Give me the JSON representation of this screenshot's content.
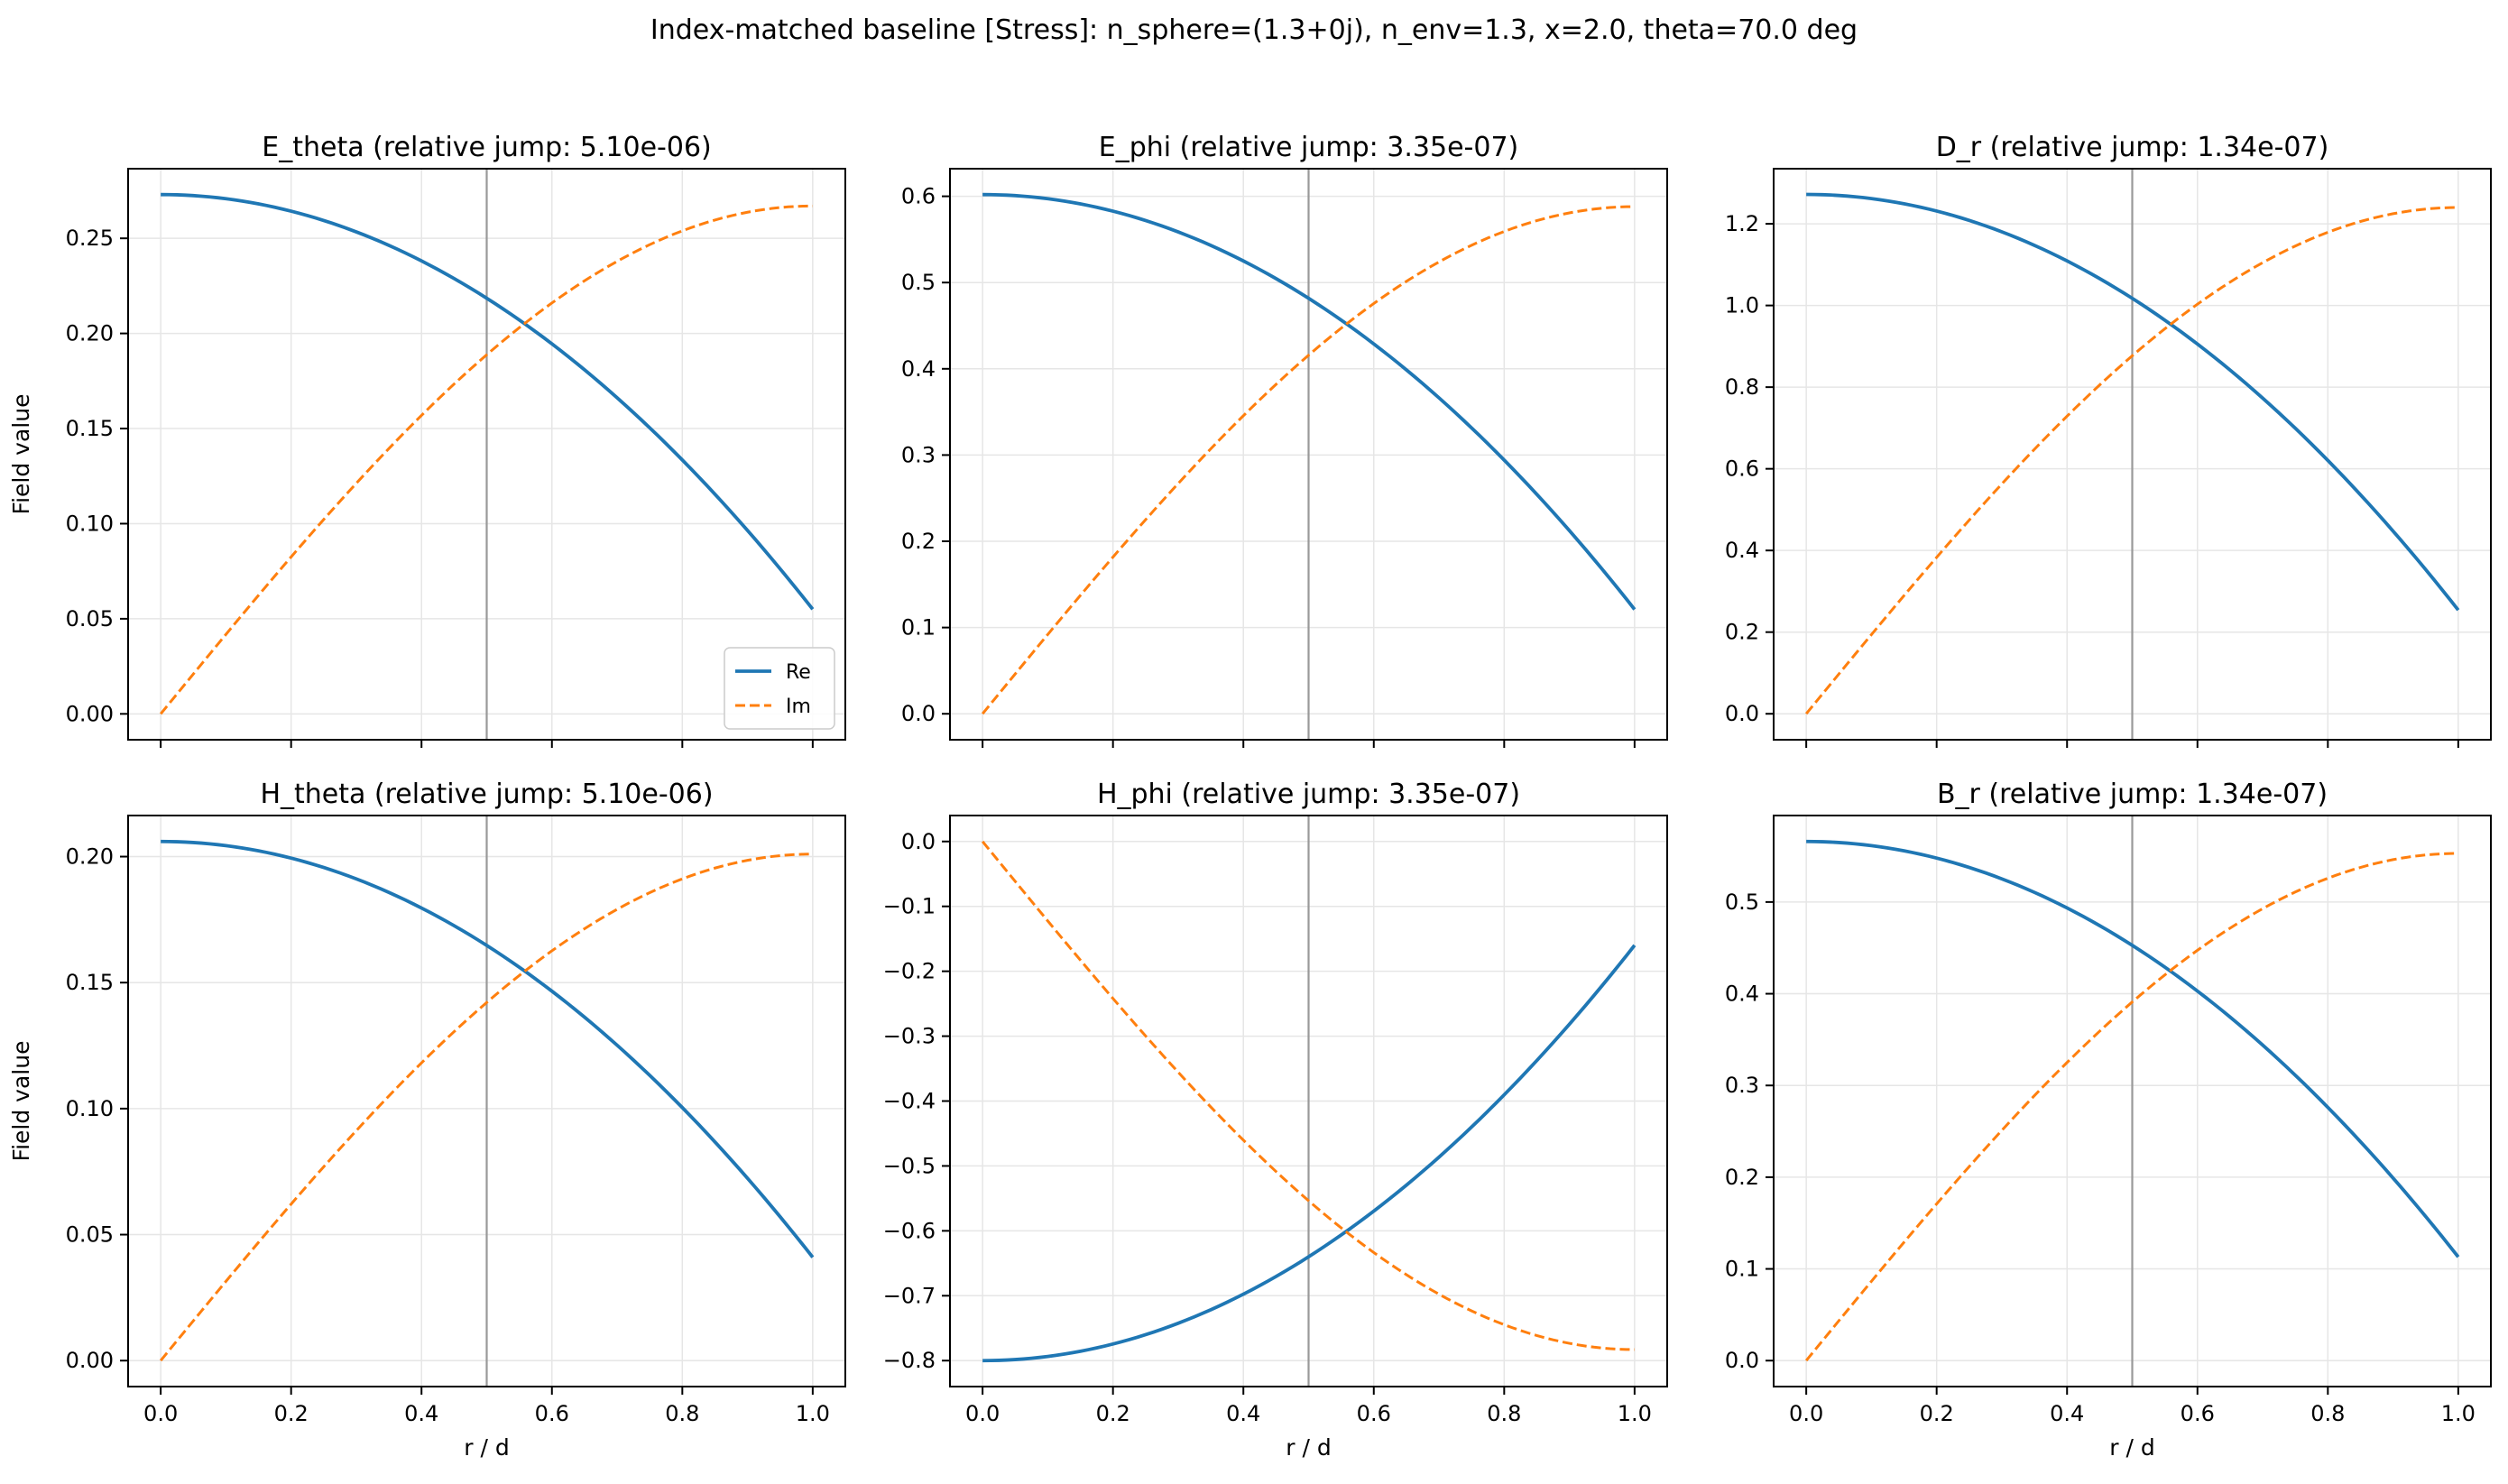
{
  "figure": {
    "suptitle": "Index-matched baseline [Stress]: n_sphere=(1.3+0j), n_env=1.3, x=2.0, theta=70.0 deg"
  },
  "colors": {
    "re": "#1f77b4",
    "im": "#ff7f0e",
    "grid": "#e6e6e6",
    "interface_line": "#999999",
    "axes": "#000000"
  },
  "legend": {
    "re_label": "Re",
    "im_label": "Im",
    "location": "lower right"
  },
  "chart_data": [
    {
      "type": "line",
      "title": "E_theta (relative jump: 5.10e-06)",
      "xlabel": "",
      "ylabel": "Field value",
      "xlim": [
        -0.05,
        1.05
      ],
      "ylim": [
        -0.0136,
        0.2866
      ],
      "xticks": [
        0.0,
        0.2,
        0.4,
        0.6,
        0.8,
        1.0
      ],
      "xtick_labels": [],
      "yticks": [
        0.0,
        0.05,
        0.1,
        0.15,
        0.2,
        0.25
      ],
      "ytick_labels": [
        "0.00",
        "0.05",
        "0.10",
        "0.15",
        "0.20",
        "0.25"
      ],
      "interface_x": 0.5,
      "grid": true,
      "legend": true,
      "re_amp": 0.273,
      "re_end": 0.055,
      "im_end": 0.267
    },
    {
      "type": "line",
      "title": "E_phi (relative jump: 3.35e-07)",
      "xlabel": "",
      "ylabel": "",
      "xlim": [
        -0.05,
        1.05
      ],
      "ylim": [
        -0.0301,
        0.632
      ],
      "xticks": [
        0.0,
        0.2,
        0.4,
        0.6,
        0.8,
        1.0
      ],
      "xtick_labels": [],
      "yticks": [
        0.0,
        0.1,
        0.2,
        0.3,
        0.4,
        0.5,
        0.6
      ],
      "ytick_labels": [
        "0.0",
        "0.1",
        "0.2",
        "0.3",
        "0.4",
        "0.5",
        "0.6"
      ],
      "interface_x": 0.5,
      "grid": true,
      "legend": false,
      "re_amp": 0.602,
      "re_end": 0.121,
      "im_end": 0.588
    },
    {
      "type": "line",
      "title": "D_r (relative jump: 1.34e-07)",
      "xlabel": "",
      "ylabel": "",
      "xlim": [
        -0.05,
        1.05
      ],
      "ylim": [
        -0.0636,
        1.335
      ],
      "xticks": [
        0.0,
        0.2,
        0.4,
        0.6,
        0.8,
        1.0
      ],
      "xtick_labels": [],
      "yticks": [
        0.0,
        0.2,
        0.4,
        0.6,
        0.8,
        1.0,
        1.2
      ],
      "ytick_labels": [
        "0.0",
        "0.2",
        "0.4",
        "0.6",
        "0.8",
        "1.0",
        "1.2"
      ],
      "interface_x": 0.5,
      "grid": true,
      "legend": false,
      "re_amp": 1.272,
      "re_end": 0.254,
      "im_end": 1.24
    },
    {
      "type": "line",
      "title": "H_theta (relative jump: 5.10e-06)",
      "xlabel": "r / d",
      "ylabel": "Field value",
      "xlim": [
        -0.05,
        1.05
      ],
      "ylim": [
        -0.0103,
        0.2163
      ],
      "xticks": [
        0.0,
        0.2,
        0.4,
        0.6,
        0.8,
        1.0
      ],
      "xtick_labels": [
        "0.0",
        "0.2",
        "0.4",
        "0.6",
        "0.8",
        "1.0"
      ],
      "yticks": [
        0.0,
        0.05,
        0.1,
        0.15,
        0.2
      ],
      "ytick_labels": [
        "0.00",
        "0.05",
        "0.10",
        "0.15",
        "0.20"
      ],
      "interface_x": 0.5,
      "grid": true,
      "legend": false,
      "re_amp": 0.206,
      "re_end": 0.041,
      "im_end": 0.201
    },
    {
      "type": "line",
      "title": "H_phi (relative jump: 3.35e-07)",
      "xlabel": "r / d",
      "ylabel": "",
      "xlim": [
        -0.05,
        1.05
      ],
      "ylim": [
        -0.84,
        0.04
      ],
      "xticks": [
        0.0,
        0.2,
        0.4,
        0.6,
        0.8,
        1.0
      ],
      "xtick_labels": [
        "0.0",
        "0.2",
        "0.4",
        "0.6",
        "0.8",
        "1.0"
      ],
      "yticks": [
        0.0,
        -0.1,
        -0.2,
        -0.3,
        -0.4,
        -0.5,
        -0.6,
        -0.7,
        -0.8
      ],
      "ytick_labels": [
        "0.0",
        "−0.1",
        "−0.2",
        "−0.3",
        "−0.4",
        "−0.5",
        "−0.6",
        "−0.7",
        "−0.8"
      ],
      "interface_x": 0.5,
      "grid": true,
      "legend": false,
      "re_amp": -0.8,
      "re_end": -0.16,
      "im_end": -0.783
    },
    {
      "type": "line",
      "title": "B_r (relative jump: 1.34e-07)",
      "xlabel": "r / d",
      "ylabel": "",
      "xlim": [
        -0.05,
        1.05
      ],
      "ylim": [
        -0.0283,
        0.5943
      ],
      "xticks": [
        0.0,
        0.2,
        0.4,
        0.6,
        0.8,
        1.0
      ],
      "xtick_labels": [
        "0.0",
        "0.2",
        "0.4",
        "0.6",
        "0.8",
        "1.0"
      ],
      "yticks": [
        0.0,
        0.1,
        0.2,
        0.3,
        0.4,
        0.5
      ],
      "ytick_labels": [
        "0.0",
        "0.1",
        "0.2",
        "0.3",
        "0.4",
        "0.5"
      ],
      "interface_x": 0.5,
      "grid": true,
      "legend": false,
      "re_amp": 0.566,
      "re_end": 0.113,
      "im_end": 0.553
    }
  ]
}
